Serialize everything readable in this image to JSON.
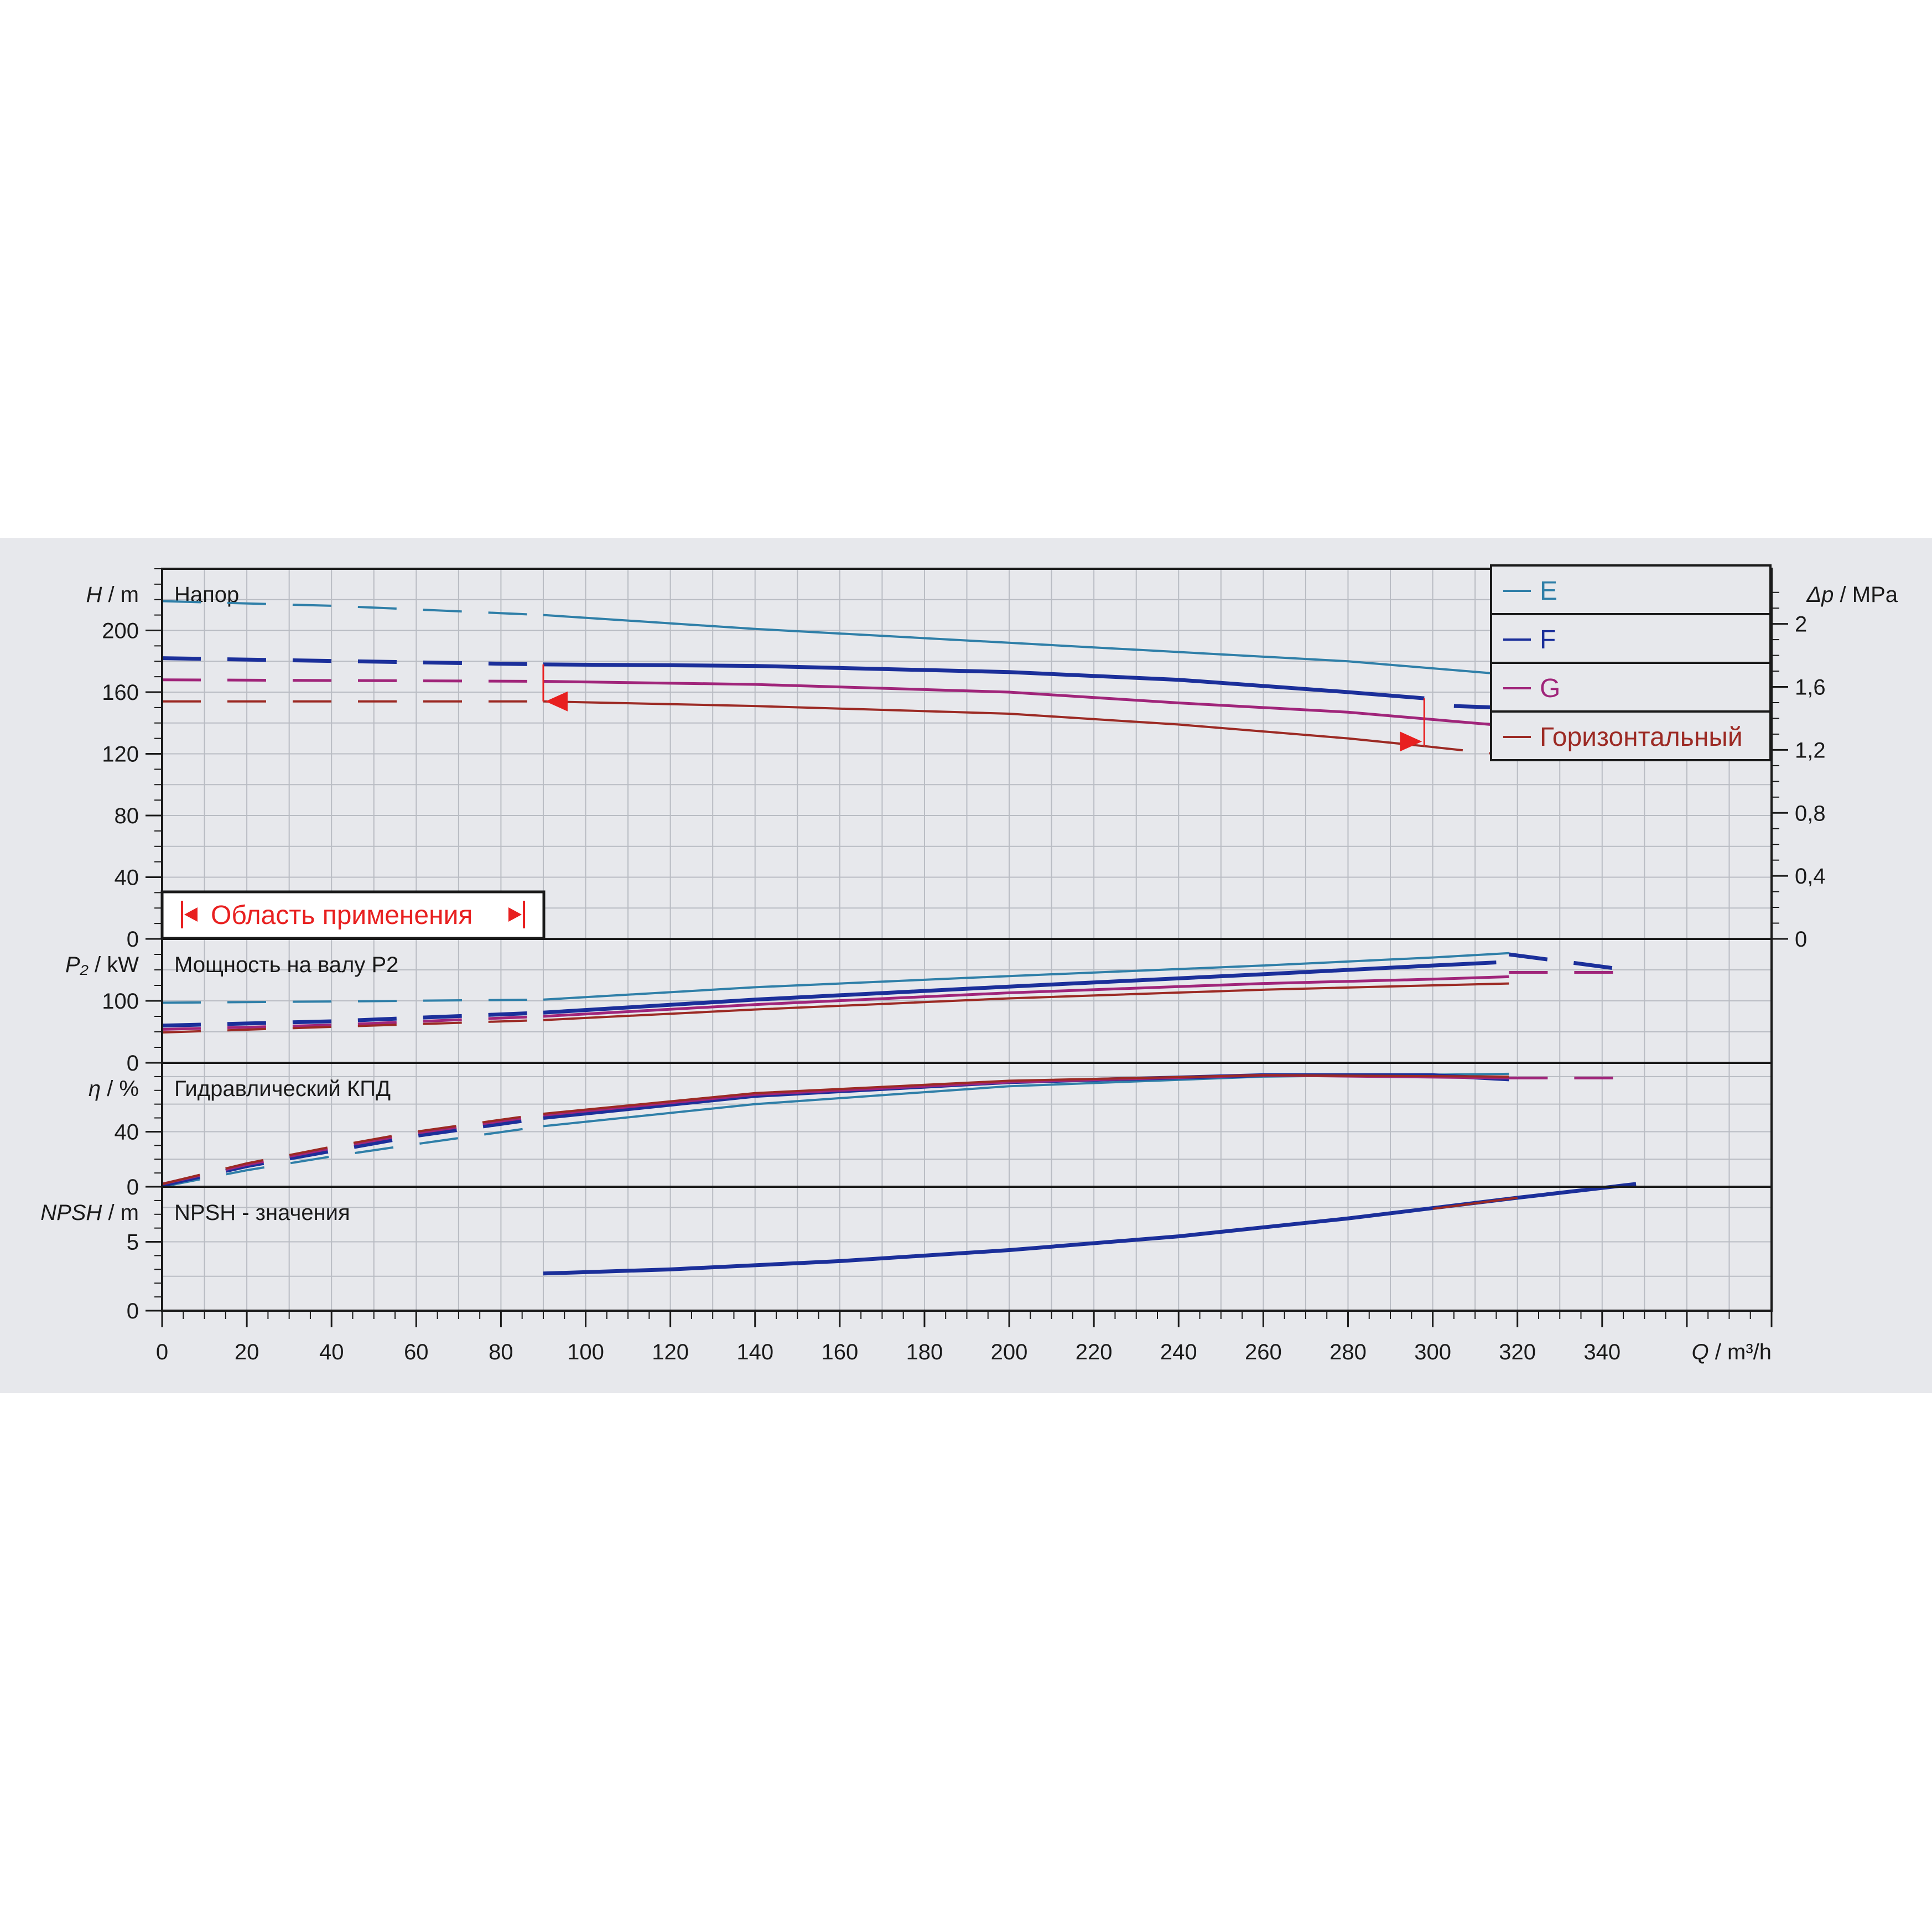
{
  "chart_data": {
    "type": "line",
    "x_axis": {
      "label_symbol": "Q",
      "label_unit": "m³/h",
      "range": [
        0,
        380
      ],
      "ticks": [
        0,
        20,
        40,
        60,
        80,
        100,
        120,
        140,
        160,
        180,
        200,
        220,
        240,
        260,
        280,
        300,
        320,
        340
      ]
    },
    "colors": {
      "E": "#2f7fa8",
      "F": "#1b2f9a",
      "G": "#a0257a",
      "H": "#9c2a24",
      "range": "#e82020"
    },
    "legend": [
      {
        "key": "E",
        "label": "E"
      },
      {
        "key": "F",
        "label": "F"
      },
      {
        "key": "G",
        "label": "G"
      },
      {
        "key": "H",
        "label": "Горизонтальный"
      }
    ],
    "application_range": {
      "label": "Область применения",
      "start_q": 90,
      "end_q": 298
    },
    "panels": [
      {
        "id": "head",
        "title": "Напор",
        "y_symbol": "H",
        "y_unit": "m",
        "y_range": [
          0,
          240
        ],
        "y_ticks": [
          0,
          40,
          80,
          120,
          160,
          200
        ],
        "y2": {
          "symbol": "Δp",
          "unit": "MPa",
          "range": [
            0,
            2.35
          ],
          "ticks": [
            "0",
            "0,4",
            "0,8",
            "1,2",
            "1,6",
            "2"
          ],
          "values": [
            0,
            0.4,
            0.8,
            1.2,
            1.6,
            2.0
          ]
        },
        "series": [
          {
            "key": "E",
            "dashed": [
              [
                0,
                219
              ],
              [
                40,
                216
              ],
              [
                90,
                210
              ]
            ],
            "solid": [
              [
                90,
                210
              ],
              [
                140,
                201
              ],
              [
                200,
                192
              ],
              [
                240,
                186
              ],
              [
                280,
                180
              ],
              [
                315,
                172
              ]
            ]
          },
          {
            "key": "F",
            "dashed": [
              [
                0,
                182
              ],
              [
                90,
                178
              ]
            ],
            "solid": [
              [
                90,
                178
              ],
              [
                140,
                177
              ],
              [
                200,
                173
              ],
              [
                240,
                168
              ],
              [
                280,
                160
              ],
              [
                298,
                156
              ]
            ],
            "tail": [
              [
                305,
                151
              ],
              [
                315,
                150
              ]
            ]
          },
          {
            "key": "G",
            "dashed": [
              [
                0,
                168
              ],
              [
                90,
                167
              ]
            ],
            "solid": [
              [
                90,
                167
              ],
              [
                140,
                165
              ],
              [
                200,
                160
              ],
              [
                240,
                153
              ],
              [
                280,
                147
              ],
              [
                318,
                138
              ]
            ]
          },
          {
            "key": "H",
            "dashed": [
              [
                0,
                154
              ],
              [
                90,
                154
              ]
            ],
            "solid": [
              [
                90,
                154
              ],
              [
                140,
                151
              ],
              [
                200,
                146
              ],
              [
                240,
                139
              ],
              [
                280,
                130
              ],
              [
                298,
                125
              ]
            ],
            "tail": [
              [
                298,
                125
              ],
              [
                318,
                119
              ]
            ]
          }
        ]
      },
      {
        "id": "power",
        "title": "Мощность на валу P2",
        "y_symbol": "P₂",
        "y_unit": "kW",
        "y_range": [
          0,
          200
        ],
        "y_ticks": [
          0,
          100
        ],
        "series": [
          {
            "key": "E",
            "dashed": [
              [
                0,
                97
              ],
              [
                40,
                99
              ],
              [
                90,
                102
              ]
            ],
            "solid": [
              [
                90,
                102
              ],
              [
                140,
                122
              ],
              [
                200,
                140
              ],
              [
                260,
                157
              ],
              [
                300,
                170
              ],
              [
                318,
                177
              ]
            ]
          },
          {
            "key": "F",
            "dashed": [
              [
                0,
                60
              ],
              [
                40,
                67
              ],
              [
                90,
                81
              ]
            ],
            "solid": [
              [
                90,
                81
              ],
              [
                140,
                102
              ],
              [
                200,
                123
              ],
              [
                260,
                143
              ],
              [
                300,
                157
              ],
              [
                315,
                162
              ]
            ],
            "tail": [
              [
                318,
                175
              ],
              [
                348,
                148
              ]
            ]
          },
          {
            "key": "G",
            "dashed": [
              [
                0,
                54
              ],
              [
                40,
                61
              ],
              [
                90,
                75
              ]
            ],
            "solid": [
              [
                90,
                75
              ],
              [
                140,
                94
              ],
              [
                200,
                113
              ],
              [
                260,
                128
              ],
              [
                300,
                135
              ],
              [
                318,
                139
              ]
            ],
            "tail": [
              [
                318,
                146
              ],
              [
                348,
                146
              ]
            ]
          },
          {
            "key": "H",
            "dashed": [
              [
                0,
                49
              ],
              [
                40,
                58
              ],
              [
                90,
                69
              ]
            ],
            "solid": [
              [
                90,
                69
              ],
              [
                140,
                86
              ],
              [
                200,
                104
              ],
              [
                260,
                118
              ],
              [
                300,
                125
              ],
              [
                318,
                128
              ]
            ]
          }
        ]
      },
      {
        "id": "eff",
        "title": "Гидравлический КПД",
        "y_symbol": "η",
        "y_unit": "%",
        "y_range": [
          0,
          90
        ],
        "y_ticks": [
          0,
          40
        ],
        "series": [
          {
            "key": "E",
            "dashed": [
              [
                0,
                0
              ],
              [
                20,
                12
              ],
              [
                40,
                22
              ],
              [
                60,
                31
              ],
              [
                90,
                44
              ]
            ],
            "solid": [
              [
                90,
                44
              ],
              [
                140,
                60
              ],
              [
                200,
                73
              ],
              [
                260,
                80
              ],
              [
                318,
                82
              ]
            ]
          },
          {
            "key": "F",
            "dashed": [
              [
                0,
                1
              ],
              [
                20,
                15
              ],
              [
                40,
                26
              ],
              [
                60,
                37
              ],
              [
                90,
                50
              ]
            ],
            "solid": [
              [
                90,
                50
              ],
              [
                140,
                66
              ],
              [
                200,
                76
              ],
              [
                260,
                81
              ],
              [
                300,
                81
              ],
              [
                318,
                78
              ]
            ]
          },
          {
            "key": "G",
            "dashed": [
              [
                0,
                2
              ],
              [
                20,
                16
              ],
              [
                40,
                28
              ],
              [
                60,
                39
              ],
              [
                90,
                52
              ]
            ],
            "solid": [
              [
                90,
                52
              ],
              [
                140,
                67
              ],
              [
                200,
                76
              ],
              [
                260,
                81
              ],
              [
                318,
                79
              ]
            ],
            "tail": [
              [
                318,
                79
              ],
              [
                348,
                79
              ]
            ]
          },
          {
            "key": "H",
            "dashed": [
              [
                0,
                2
              ],
              [
                20,
                17
              ],
              [
                40,
                29
              ],
              [
                60,
                40
              ],
              [
                90,
                53
              ]
            ],
            "solid": [
              [
                90,
                53
              ],
              [
                140,
                68
              ],
              [
                200,
                77
              ],
              [
                260,
                81
              ],
              [
                318,
                80
              ]
            ]
          }
        ]
      },
      {
        "id": "npsh",
        "title": "NPSH - значения",
        "y_symbol": "NPSH",
        "y_unit": "m",
        "y_range": [
          0,
          9
        ],
        "y_ticks": [
          0,
          5
        ],
        "series": [
          {
            "key": "F",
            "solid": [
              [
                90,
                2.7
              ],
              [
                120,
                3.0
              ],
              [
                160,
                3.6
              ],
              [
                200,
                4.4
              ],
              [
                240,
                5.4
              ],
              [
                280,
                6.7
              ],
              [
                320,
                8.2
              ],
              [
                348,
                9.2
              ]
            ]
          },
          {
            "key": "H",
            "solid": [
              [
                300,
                7.4
              ],
              [
                320,
                8.2
              ]
            ]
          }
        ]
      }
    ]
  }
}
